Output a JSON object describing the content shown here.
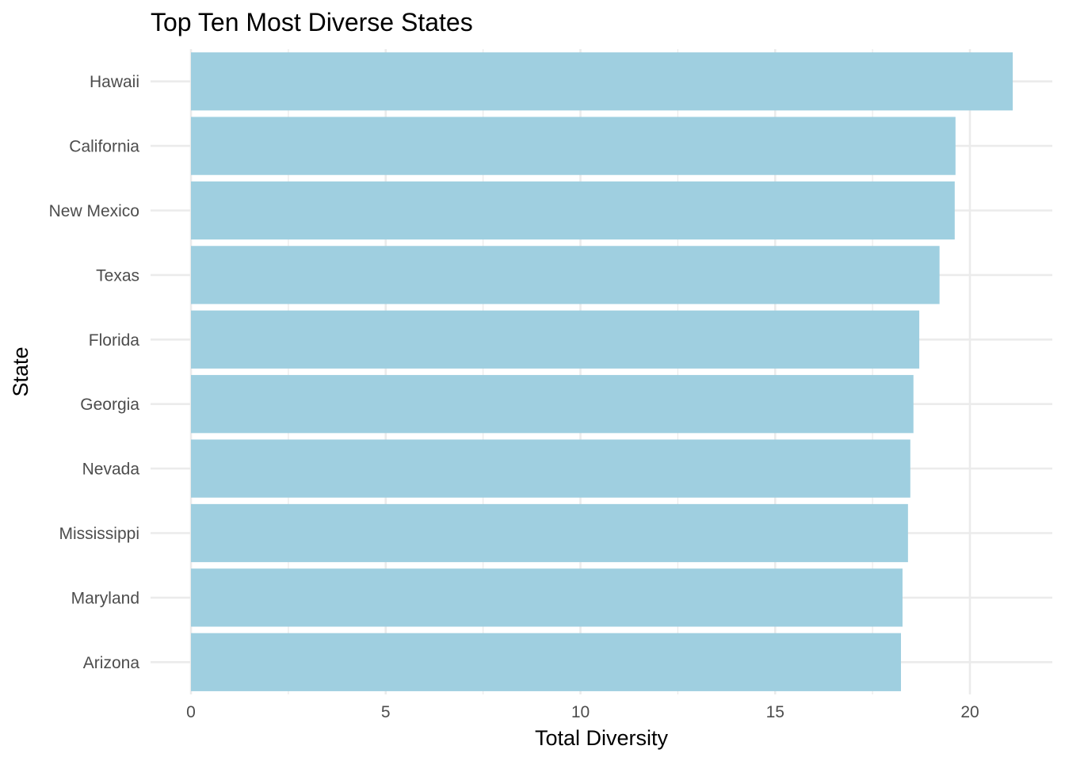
{
  "chart_data": {
    "type": "bar",
    "orientation": "horizontal",
    "title": "Top Ten Most Diverse States",
    "xlabel": "Total Diversity",
    "ylabel": "State",
    "categories": [
      "Hawaii",
      "California",
      "New Mexico",
      "Texas",
      "Florida",
      "Georgia",
      "Nevada",
      "Mississippi",
      "Maryland",
      "Arizona"
    ],
    "values": [
      21.1,
      19.63,
      19.61,
      19.22,
      18.7,
      18.55,
      18.47,
      18.41,
      18.27,
      18.23
    ],
    "xlim": [
      0,
      22
    ],
    "xticks": [
      0,
      5,
      10,
      15,
      20
    ],
    "xtick_labels": [
      "0",
      "5",
      "10",
      "15",
      "20"
    ],
    "bar_color": "#9fcfe0",
    "grid": true,
    "legend": "none"
  }
}
